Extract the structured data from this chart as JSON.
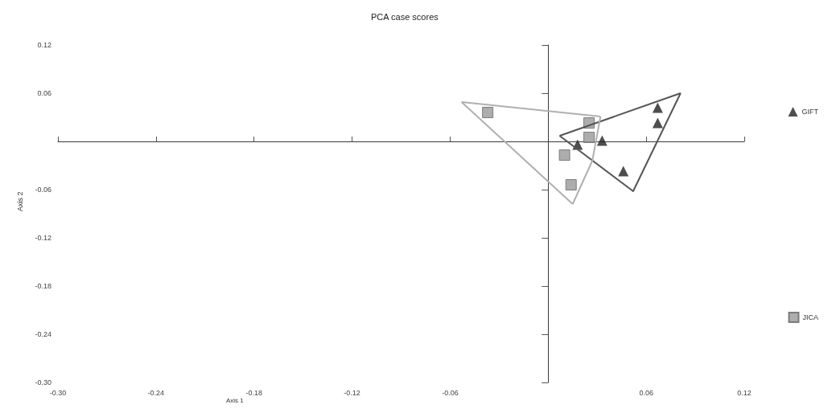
{
  "chart_data": {
    "type": "scatter",
    "title": "PCA case scores",
    "xlabel": "Axis 1",
    "ylabel": "Axis 2",
    "xlim": [
      -0.3,
      0.12
    ],
    "ylim": [
      -0.3,
      0.12
    ],
    "xticks": [
      {
        "value": -0.3,
        "label": "-0.30"
      },
      -0.24,
      -0.18,
      -0.12,
      -0.06,
      0.06,
      0.12
    ],
    "yticks": [
      {
        "value": -0.3,
        "label": "-0.30"
      },
      -0.24,
      -0.18,
      -0.12,
      -0.06,
      0.06,
      0.12
    ],
    "grid": false,
    "legend": "right",
    "series": [
      {
        "name": "GIFT",
        "color": "#222222",
        "marker": "triangle",
        "x": [
          0.018,
          0.033,
          0.046,
          0.067,
          0.067
        ],
        "values": [
          -0.004,
          0.001,
          -0.037,
          0.042,
          0.023
        ]
      },
      {
        "name": "JICA",
        "color": "#999999",
        "marker": "square",
        "x": [
          -0.037,
          0.025,
          0.025,
          0.01,
          0.014
        ],
        "values": [
          0.036,
          0.023,
          0.005,
          -0.017,
          -0.054
        ]
      },
      {
        "type": "line",
        "color": "#555555",
        "marker": "none",
        "x": [
          0.007,
          0.081
        ],
        "values": [
          0.007,
          0.06
        ]
      },
      {
        "type": "line",
        "color": "#555555",
        "marker": "none",
        "x": [
          0.007,
          0.052,
          0.081
        ],
        "values": [
          0.007,
          -0.062,
          0.06
        ]
      },
      {
        "type": "line",
        "color": "#b0b0b0",
        "marker": "none",
        "x": [
          -0.053,
          0.032
        ],
        "values": [
          0.049,
          0.031
        ]
      },
      {
        "type": "line",
        "color": "#b0b0b0",
        "marker": "none",
        "x": [
          0.015,
          0.027,
          0.032
        ],
        "values": [
          -0.078,
          -0.024,
          0.031
        ]
      },
      {
        "type": "line",
        "color": "#b0b0b0",
        "marker": "none",
        "x": [
          -0.053,
          0.015
        ],
        "values": [
          0.049,
          -0.078
        ]
      }
    ]
  }
}
